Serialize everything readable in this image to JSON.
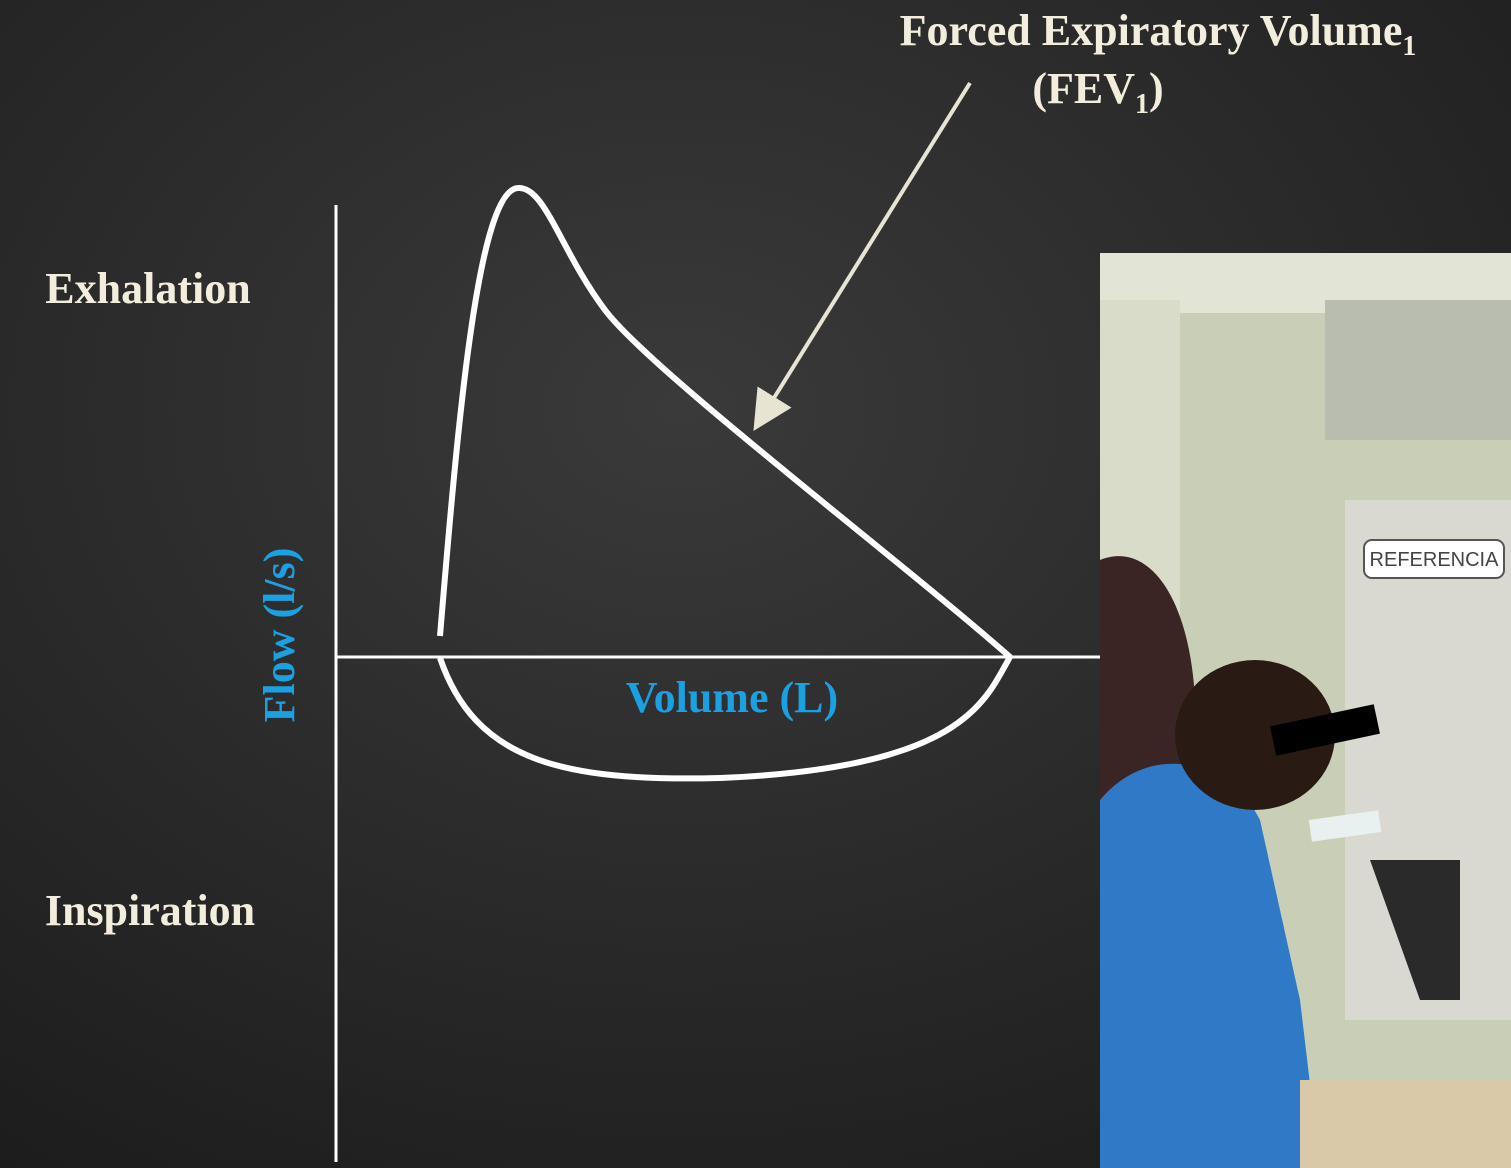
{
  "annotation": {
    "title": "Forced Expiratory Volume",
    "title_subscript": "1",
    "abbreviation": "(FEV",
    "abbreviation_subscript": "1",
    "abbreviation_close": ")"
  },
  "labels": {
    "exhalation": "Exhalation",
    "inspiration": "Inspiration",
    "y_axis": "Flow (l/s)",
    "x_axis": "Volume (L)"
  },
  "photo": {
    "sign": "REFERENCIA"
  }
}
